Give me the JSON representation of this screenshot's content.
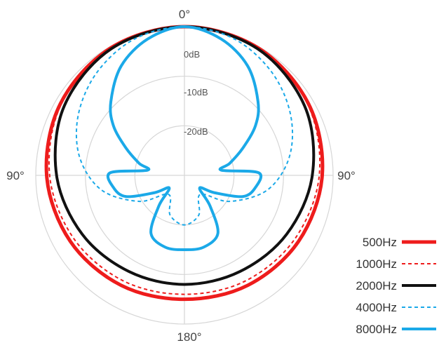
{
  "chart_data": {
    "type": "polar-line",
    "title": "",
    "angle_labels": {
      "top": "0°",
      "left": "90°",
      "right": "90°",
      "bottom": "180°"
    },
    "radial_axis": {
      "unit": "dB",
      "max_db": 0,
      "min_db": -30,
      "rings": [
        {
          "db": 0,
          "label": "0dB"
        },
        {
          "db": -10,
          "label": "-10dB"
        },
        {
          "db": -20,
          "label": "-20dB"
        },
        {
          "db": -30,
          "label": ""
        }
      ]
    },
    "spokes_deg": [
      0,
      90,
      180,
      270
    ],
    "grid": true,
    "legend_position": "bottom-right",
    "series": [
      {
        "name": "500Hz",
        "color": "#ee1c1c",
        "dash": "solid",
        "width": 5,
        "angles": [
          0,
          30,
          60,
          90,
          120,
          150,
          180
        ],
        "values": [
          0,
          -0.3,
          -1.1,
          -2.2,
          -3.4,
          -4.4,
          -5
        ]
      },
      {
        "name": "1000Hz",
        "color": "#ee1c1c",
        "dash": "dashed",
        "width": 2,
        "angles": [
          0,
          30,
          60,
          90,
          120,
          150,
          180
        ],
        "values": [
          0,
          -0.4,
          -1.3,
          -2.8,
          -4.3,
          -5.4,
          -6
        ]
      },
      {
        "name": "2000Hz",
        "color": "#111111",
        "dash": "solid",
        "width": 4,
        "angles": [
          0,
          30,
          60,
          90,
          120,
          150,
          180
        ],
        "values": [
          0,
          -0.5,
          -2.0,
          -4.2,
          -6.2,
          -7.6,
          -8
        ]
      },
      {
        "name": "4000Hz",
        "color": "#1ba9e8",
        "dash": "dashed",
        "width": 2,
        "angles": [
          0,
          20,
          40,
          60,
          80,
          100,
          120,
          140,
          160,
          180
        ],
        "values": [
          0,
          -0.7,
          -2.7,
          -5.3,
          -8.5,
          -13,
          -19.5,
          -25,
          -21.5,
          -20
        ]
      },
      {
        "name": "8000Hz",
        "color": "#1ba9e8",
        "dash": "solid",
        "width": 4,
        "angles": [
          0,
          15,
          30,
          45,
          55,
          65,
          75,
          82,
          88,
          100,
          110,
          120,
          130,
          140,
          150,
          165,
          180
        ],
        "values": [
          0,
          -1.5,
          -4.5,
          -9,
          -12.5,
          -17,
          -20.5,
          -22.5,
          -15,
          -15.5,
          -17.5,
          -23,
          -26,
          -22,
          -16.5,
          -15,
          -15
        ]
      }
    ]
  }
}
